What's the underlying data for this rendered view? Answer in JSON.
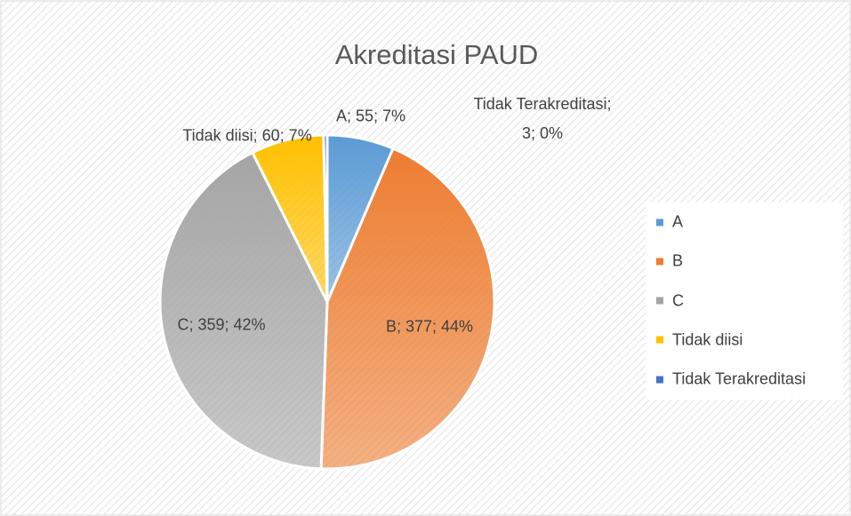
{
  "chart_data": {
    "type": "pie",
    "title": "Akreditasi PAUD",
    "categories": [
      "A",
      "B",
      "C",
      "Tidak diisi",
      "Tidak Terakreditasi"
    ],
    "values": [
      55,
      377,
      359,
      60,
      3
    ],
    "value_labels": [
      "A; 55; 7%",
      "B; 377; 44%",
      "C; 359; 42%",
      "Tidak diisi; 60; 7%",
      "Tidak Terakreditasi; 3; 0%"
    ],
    "colors": [
      "#5b9bd5",
      "#ed7d31",
      "#a5a5a5",
      "#ffc000",
      "#4472c4"
    ],
    "legend": "right"
  }
}
